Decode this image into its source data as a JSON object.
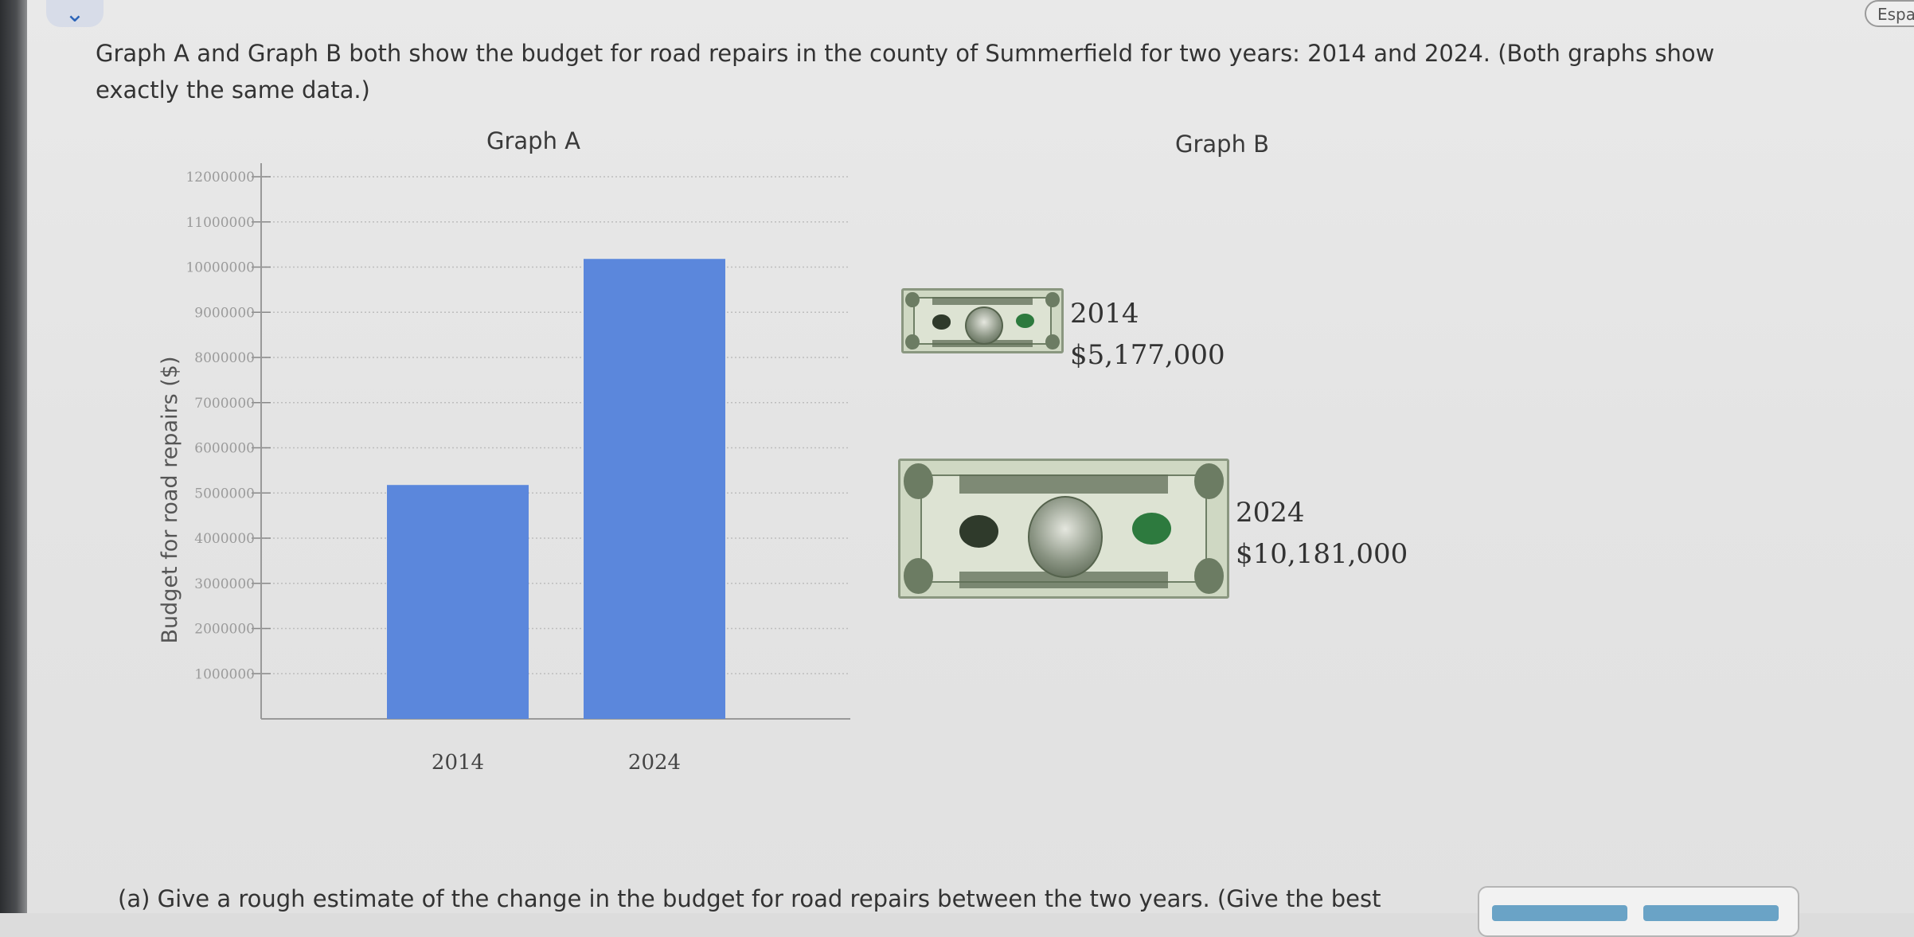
{
  "intro_text": "Graph A and Graph B both show the budget for road repairs in the county of Summerfield for two years: 2014 and 2024. (Both graphs show exactly the same data.)",
  "lang_button": "Espa",
  "graph_a": {
    "title": "Graph A"
  },
  "graph_b": {
    "title": "Graph B",
    "items": [
      {
        "year": "2014",
        "amount": "$5,177,000",
        "bill_icon": "dollar-bill-small-icon"
      },
      {
        "year": "2024",
        "amount": "$10,181,000",
        "bill_icon": "dollar-bill-large-icon"
      }
    ]
  },
  "question_text": "(a)  Give a rough estimate of the change in the budget for road repairs between the two years. (Give the best",
  "colors": {
    "bar": "#5b87dc",
    "text": "#333333",
    "grid": "#bdbdbd"
  },
  "chart_data": [
    {
      "type": "bar",
      "title": "Graph A",
      "categories": [
        "2014",
        "2024"
      ],
      "values": [
        5177000,
        10181000
      ],
      "ylabel": "Budget for road repairs ($)",
      "xlabel": "",
      "ylim": [
        0,
        12000000
      ],
      "yticks": [
        "1000000",
        "2000000",
        "3000000",
        "4000000",
        "5000000",
        "6000000",
        "7000000",
        "8000000",
        "9000000",
        "10000000",
        "11000000",
        "12000000"
      ],
      "grid": true
    },
    {
      "type": "pictograph",
      "title": "Graph B",
      "categories": [
        "2014",
        "2024"
      ],
      "values": [
        5177000,
        10181000
      ]
    }
  ]
}
